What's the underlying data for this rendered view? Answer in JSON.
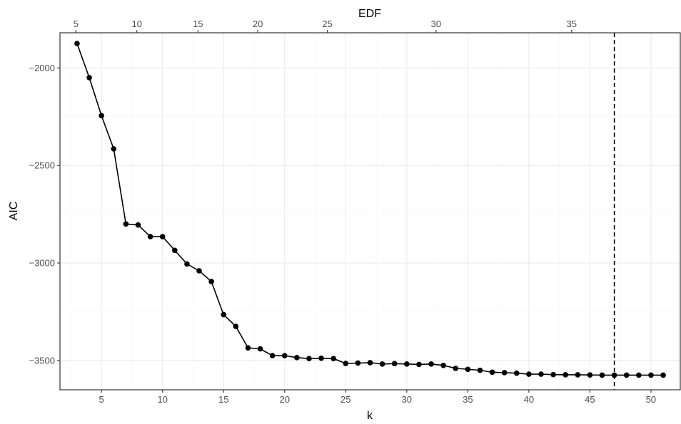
{
  "chart_data": {
    "type": "line",
    "xlabel": "k",
    "ylabel": "AIC",
    "secondary_xlabel": "EDF",
    "xlim": [
      1.6,
      52.4
    ],
    "ylim": [
      -3650,
      -1820
    ],
    "x_ticks": [
      5,
      10,
      15,
      20,
      25,
      30,
      35,
      40,
      45,
      50
    ],
    "x_tick_labels": [
      "5",
      "10",
      "15",
      "20",
      "25",
      "30",
      "35",
      "40",
      "45",
      "50"
    ],
    "y_ticks": [
      -2000,
      -2500,
      -3000,
      -3500
    ],
    "y_tick_labels": [
      "−2000",
      "−2500",
      "−3000",
      "−3500"
    ],
    "top_axis": {
      "title": "EDF",
      "ticks": [
        {
          "label": "5",
          "k": 2.9
        },
        {
          "label": "10",
          "k": 7.9
        },
        {
          "label": "15",
          "k": 12.9
        },
        {
          "label": "20",
          "k": 17.8
        },
        {
          "label": "25",
          "k": 23.5
        },
        {
          "label": "30",
          "k": 32.4
        },
        {
          "label": "35",
          "k": 43.5
        }
      ]
    },
    "grid": true,
    "vertical_reference_line": {
      "x": 47,
      "style": "dashed"
    },
    "series": [
      {
        "x": [
          3,
          4,
          5,
          6,
          7,
          8,
          9,
          10,
          11,
          12,
          13,
          14,
          15,
          16,
          17,
          18,
          19,
          20,
          21,
          22,
          23,
          24,
          25,
          26,
          27,
          28,
          29,
          30,
          31,
          32,
          33,
          34,
          35,
          36,
          37,
          38,
          39,
          40,
          41,
          42,
          43,
          44,
          45,
          46,
          47,
          48,
          49,
          50,
          51
        ],
        "y": [
          -1875,
          -2050,
          -2245,
          -2415,
          -2800,
          -2805,
          -2865,
          -2865,
          -2935,
          -3005,
          -3040,
          -3095,
          -3265,
          -3325,
          -3435,
          -3440,
          -3475,
          -3475,
          -3485,
          -3490,
          -3488,
          -3490,
          -3515,
          -3513,
          -3511,
          -3518,
          -3516,
          -3518,
          -3520,
          -3518,
          -3525,
          -3540,
          -3545,
          -3550,
          -3560,
          -3562,
          -3565,
          -3570,
          -3570,
          -3572,
          -3573,
          -3573,
          -3574,
          -3575,
          -3575,
          -3575,
          -3575,
          -3575,
          -3575
        ],
        "color": "#000000"
      }
    ]
  }
}
